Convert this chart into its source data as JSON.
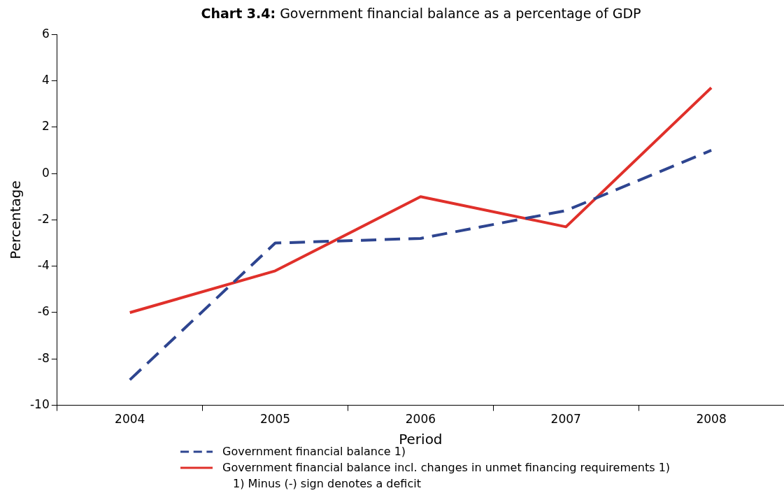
{
  "chart_data": {
    "type": "line",
    "title": "Chart 3.4: Government financial balance as a percentage of GDP",
    "xlabel": "Period",
    "ylabel": "Percentage",
    "categories": [
      "2004",
      "2005",
      "2006",
      "2007",
      "2008"
    ],
    "series": [
      {
        "name": "Government financial balance 1)",
        "color": "#2e4590",
        "line_style": "dashed",
        "values": [
          -8.9,
          -3.0,
          -2.8,
          -1.6,
          1.0
        ]
      },
      {
        "name": "Government financial balance incl. changes in unmet financing requirements 1)",
        "color": "#e0302a",
        "line_style": "solid",
        "values": [
          -6.0,
          -4.2,
          -1.0,
          -2.3,
          3.7
        ]
      }
    ],
    "ylim": [
      -10,
      6
    ],
    "yticks": [
      -10,
      -8,
      -6,
      -4,
      -2,
      0,
      2,
      4,
      6
    ],
    "grid": false,
    "legend": "bottom",
    "marker": "none",
    "annotations": [
      "1) Minus (-) sign denotes a deficit"
    ]
  }
}
